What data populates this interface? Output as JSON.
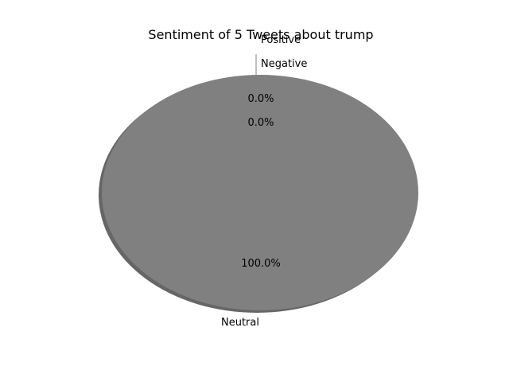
{
  "chart_data": {
    "type": "pie",
    "title": "Sentiment of 5 Tweets about trump",
    "categories": [
      "Positive",
      "Negative",
      "Neutral"
    ],
    "values": [
      0,
      0,
      5
    ],
    "percent_labels": [
      "0.0%",
      "0.0%",
      "100.0%"
    ],
    "colors": {
      "slice_fill": "#808080",
      "shadow": "#666666",
      "leader_line": "#8aa08a"
    },
    "shadow": true,
    "legend": "none"
  }
}
